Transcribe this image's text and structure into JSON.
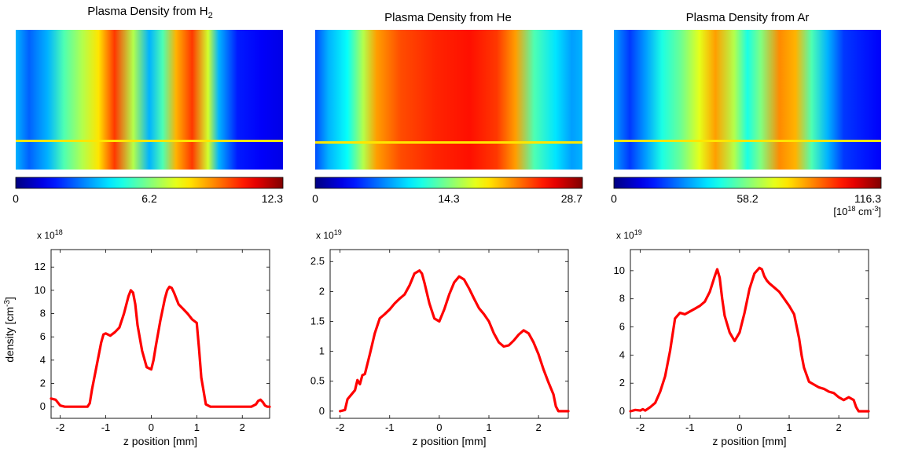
{
  "colormap": {
    "name": "jet",
    "unit_prefix": "[10",
    "unit_exp": "18",
    "unit_mid": " cm",
    "unit_exp2": "-3",
    "unit_suffix": "]"
  },
  "axis_labels": {
    "xlabel": "z position [mm]",
    "ylabel_main": "density [cm",
    "ylabel_sup": "-3",
    "ylabel_end": "]"
  },
  "line_color": "#ff0000",
  "marker_line_color": "#ffe600",
  "chart_data": [
    {
      "type": "heatmap",
      "title_main": "Plasma Density from H",
      "title_sub": "2",
      "colorbar_ticks": [
        "0",
        "6.2",
        "12.3"
      ],
      "range": [
        0,
        12.3
      ]
    },
    {
      "type": "heatmap",
      "title_main": "Plasma Density from He",
      "title_sub": "",
      "colorbar_ticks": [
        "0",
        "14.3",
        "28.7"
      ],
      "range": [
        0,
        28.7
      ]
    },
    {
      "type": "heatmap",
      "title_main": "Plasma Density from Ar",
      "title_sub": "",
      "colorbar_ticks": [
        "0",
        "58.2",
        "116.3"
      ],
      "range": [
        0,
        116.3
      ]
    },
    {
      "type": "line",
      "exponent_label": "x 10",
      "exponent": "18",
      "xlim": [
        -2.2,
        2.6
      ],
      "ylim": [
        -1,
        13.5
      ],
      "xticks": [
        -2,
        -1,
        0,
        1,
        2
      ],
      "yticks": [
        0,
        2,
        4,
        6,
        8,
        10,
        12
      ],
      "ytick_labels": [
        "0",
        "2",
        "4",
        "6",
        "8",
        "10",
        "12"
      ],
      "x": [
        -2.2,
        -2.1,
        -2.0,
        -1.9,
        -1.8,
        -1.7,
        -1.6,
        -1.5,
        -1.4,
        -1.35,
        -1.3,
        -1.2,
        -1.1,
        -1.05,
        -1.0,
        -0.9,
        -0.8,
        -0.7,
        -0.6,
        -0.5,
        -0.45,
        -0.4,
        -0.35,
        -0.3,
        -0.2,
        -0.1,
        0.0,
        0.05,
        0.1,
        0.2,
        0.3,
        0.35,
        0.4,
        0.45,
        0.5,
        0.55,
        0.6,
        0.7,
        0.8,
        0.9,
        1.0,
        1.05,
        1.1,
        1.2,
        1.3,
        1.4,
        1.5,
        1.6,
        1.7,
        1.8,
        1.9,
        2.0,
        2.1,
        2.2,
        2.3,
        2.35,
        2.4,
        2.45,
        2.5,
        2.55,
        2.6
      ],
      "y": [
        0.7,
        0.6,
        0.1,
        0.0,
        0.0,
        0.0,
        0.0,
        0.0,
        0.0,
        0.3,
        1.5,
        3.5,
        5.5,
        6.2,
        6.3,
        6.1,
        6.4,
        6.8,
        8.0,
        9.5,
        10.0,
        9.8,
        8.8,
        7.0,
        4.8,
        3.4,
        3.2,
        4.0,
        5.2,
        7.4,
        9.3,
        10.0,
        10.3,
        10.2,
        9.8,
        9.3,
        8.8,
        8.4,
        8.0,
        7.5,
        7.2,
        5.0,
        2.5,
        0.2,
        0.0,
        0.0,
        0.0,
        0.0,
        0.0,
        0.0,
        0.0,
        0.0,
        0.0,
        0.0,
        0.2,
        0.5,
        0.6,
        0.4,
        0.1,
        0.0,
        0.0
      ]
    },
    {
      "type": "line",
      "exponent_label": "x 10",
      "exponent": "19",
      "xlim": [
        -2.2,
        2.6
      ],
      "ylim": [
        -0.12,
        2.7
      ],
      "xticks": [
        -2,
        -1,
        0,
        1,
        2
      ],
      "yticks": [
        0,
        0.5,
        1,
        1.5,
        2,
        2.5
      ],
      "ytick_labels": [
        "0",
        "0.5",
        "1",
        "1.5",
        "2",
        "2.5"
      ],
      "x": [
        -2.0,
        -1.9,
        -1.85,
        -1.8,
        -1.7,
        -1.65,
        -1.6,
        -1.55,
        -1.5,
        -1.4,
        -1.3,
        -1.2,
        -1.1,
        -1.0,
        -0.9,
        -0.8,
        -0.7,
        -0.6,
        -0.5,
        -0.4,
        -0.35,
        -0.3,
        -0.2,
        -0.1,
        0.0,
        0.1,
        0.2,
        0.3,
        0.4,
        0.5,
        0.6,
        0.7,
        0.8,
        0.9,
        1.0,
        1.1,
        1.2,
        1.3,
        1.4,
        1.5,
        1.6,
        1.7,
        1.8,
        1.9,
        2.0,
        2.1,
        2.2,
        2.3,
        2.35,
        2.4,
        2.6
      ],
      "y": [
        0.0,
        0.02,
        0.2,
        0.25,
        0.35,
        0.52,
        0.45,
        0.6,
        0.62,
        0.95,
        1.3,
        1.55,
        1.62,
        1.7,
        1.8,
        1.88,
        1.95,
        2.1,
        2.3,
        2.35,
        2.3,
        2.15,
        1.8,
        1.55,
        1.5,
        1.7,
        1.95,
        2.15,
        2.25,
        2.2,
        2.05,
        1.88,
        1.72,
        1.62,
        1.5,
        1.3,
        1.15,
        1.08,
        1.1,
        1.18,
        1.28,
        1.35,
        1.3,
        1.15,
        0.95,
        0.7,
        0.48,
        0.28,
        0.08,
        0.0,
        0.0
      ]
    },
    {
      "type": "line",
      "exponent_label": "x 10",
      "exponent": "19",
      "xlim": [
        -2.2,
        2.6
      ],
      "ylim": [
        -0.5,
        11.5
      ],
      "xticks": [
        -2,
        -1,
        0,
        1,
        2
      ],
      "yticks": [
        0,
        2,
        4,
        6,
        8,
        10
      ],
      "ytick_labels": [
        "0",
        "2",
        "4",
        "6",
        "8",
        "10"
      ],
      "x": [
        -2.2,
        -2.1,
        -2.0,
        -1.95,
        -1.9,
        -1.8,
        -1.7,
        -1.6,
        -1.5,
        -1.4,
        -1.3,
        -1.2,
        -1.1,
        -1.0,
        -0.9,
        -0.8,
        -0.7,
        -0.6,
        -0.5,
        -0.45,
        -0.4,
        -0.35,
        -0.3,
        -0.2,
        -0.1,
        0.0,
        0.05,
        0.1,
        0.2,
        0.3,
        0.4,
        0.45,
        0.5,
        0.55,
        0.6,
        0.7,
        0.8,
        0.9,
        1.0,
        1.1,
        1.2,
        1.25,
        1.3,
        1.4,
        1.5,
        1.6,
        1.7,
        1.8,
        1.9,
        2.0,
        2.1,
        2.2,
        2.3,
        2.35,
        2.4,
        2.45,
        2.5,
        2.6
      ],
      "y": [
        0.0,
        0.1,
        0.05,
        0.15,
        0.05,
        0.3,
        0.6,
        1.4,
        2.5,
        4.3,
        6.6,
        7.0,
        6.9,
        7.1,
        7.3,
        7.5,
        7.8,
        8.5,
        9.6,
        10.1,
        9.5,
        8.0,
        6.8,
        5.6,
        5.0,
        5.6,
        6.3,
        7.0,
        8.7,
        9.8,
        10.2,
        10.1,
        9.6,
        9.3,
        9.1,
        8.8,
        8.5,
        8.0,
        7.5,
        6.9,
        5.2,
        4.0,
        3.1,
        2.1,
        1.9,
        1.7,
        1.6,
        1.4,
        1.3,
        1.0,
        0.8,
        1.0,
        0.8,
        0.3,
        0.0,
        0.0,
        0.0,
        0.0
      ]
    }
  ]
}
